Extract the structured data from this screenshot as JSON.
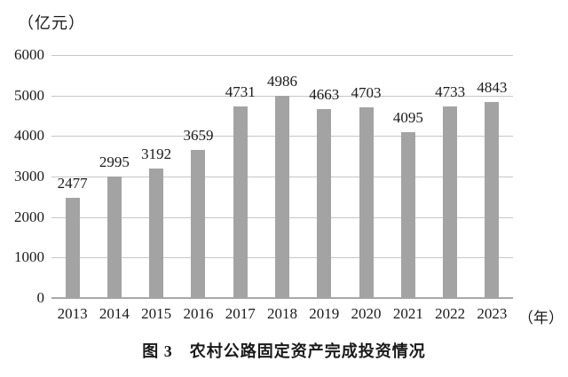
{
  "unit_label": "（亿元）",
  "x_unit_label": "（年）",
  "caption": "图 3　农村公路固定资产完成投资情况",
  "colors": {
    "bar": "#a3a3a3",
    "gridline": "#c7c7c7",
    "axis": "#a9a9a9",
    "text": "#1a1a1a",
    "background": "#ffffff"
  },
  "chart_data": {
    "type": "bar",
    "title": "图 3　农村公路固定资产完成投资情况",
    "categories": [
      "2013",
      "2014",
      "2015",
      "2016",
      "2017",
      "2018",
      "2019",
      "2020",
      "2021",
      "2022",
      "2023"
    ],
    "values": [
      2477,
      2995,
      3192,
      3659,
      4731,
      4986,
      4663,
      4703,
      4095,
      4733,
      4843
    ],
    "xlabel": "年",
    "ylabel": "亿元",
    "ylim": [
      0,
      6000
    ],
    "yticks": [
      0,
      1000,
      2000,
      3000,
      4000,
      5000,
      6000
    ],
    "grid": true,
    "legend_position": "none",
    "value_labels_shown": true
  }
}
